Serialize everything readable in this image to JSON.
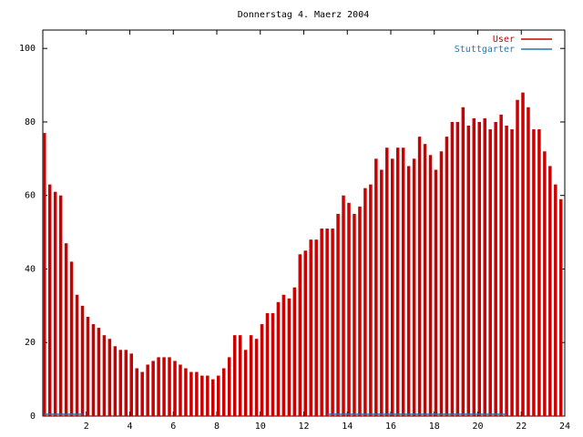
{
  "chart_data": {
    "type": "impulses",
    "title": "Donnerstag 4. Maerz 2004",
    "x": [
      0,
      0.25,
      0.5,
      0.75,
      1,
      1.25,
      1.5,
      1.75,
      2,
      2.25,
      2.5,
      2.75,
      3,
      3.25,
      3.5,
      3.75,
      4,
      4.25,
      4.5,
      4.75,
      5,
      5.25,
      5.5,
      5.75,
      6,
      6.25,
      6.5,
      6.75,
      7,
      7.25,
      7.5,
      7.75,
      8,
      8.25,
      8.5,
      8.75,
      9,
      9.25,
      9.5,
      9.75,
      10,
      10.25,
      10.5,
      10.75,
      11,
      11.25,
      11.5,
      11.75,
      12,
      12.25,
      12.5,
      12.75,
      13,
      13.25,
      13.5,
      13.75,
      14,
      14.25,
      14.5,
      14.75,
      15,
      15.25,
      15.5,
      15.75,
      16,
      16.25,
      16.5,
      16.75,
      17,
      17.25,
      17.5,
      17.75,
      18,
      18.25,
      18.5,
      18.75,
      19,
      19.25,
      19.5,
      19.75,
      20,
      20.25,
      20.5,
      20.75,
      21,
      21.25,
      21.5,
      21.75,
      22,
      22.25,
      22.5,
      22.75,
      23,
      23.25,
      23.5,
      23.75
    ],
    "series": [
      {
        "name": "User",
        "color": "#cc0000",
        "values": [
          77,
          63,
          61,
          60,
          47,
          42,
          33,
          30,
          27,
          25,
          24,
          22,
          21,
          19,
          18,
          18,
          17,
          13,
          12,
          14,
          15,
          16,
          16,
          16,
          15,
          14,
          13,
          12,
          12,
          11,
          11,
          10,
          11,
          13,
          16,
          22,
          22,
          18,
          22,
          21,
          25,
          28,
          28,
          31,
          33,
          32,
          35,
          44,
          45,
          48,
          48,
          51,
          51,
          51,
          55,
          60,
          58,
          55,
          57,
          62,
          63,
          70,
          67,
          73,
          70,
          73,
          73,
          68,
          70,
          76,
          74,
          71,
          67,
          72,
          76,
          80,
          80,
          84,
          79,
          81,
          80,
          81,
          78,
          80,
          82,
          79,
          78,
          86,
          88,
          84,
          78,
          78,
          72,
          68,
          63,
          59
        ]
      },
      {
        "name": "Stuttgarter",
        "color": "#1f77b4",
        "values": [
          0.5,
          0.5,
          0.5,
          0.5,
          0.5,
          0.5,
          0.5,
          0.5,
          null,
          null,
          null,
          null,
          null,
          null,
          null,
          null,
          null,
          null,
          null,
          null,
          null,
          null,
          null,
          null,
          null,
          null,
          null,
          null,
          null,
          null,
          null,
          null,
          null,
          null,
          null,
          null,
          null,
          null,
          null,
          null,
          null,
          null,
          null,
          null,
          null,
          null,
          null,
          null,
          null,
          null,
          null,
          null,
          0.5,
          0.5,
          0.5,
          0.5,
          0.5,
          0.5,
          0.5,
          0.5,
          0.5,
          0.5,
          0.5,
          0.5,
          0.5,
          0.5,
          0.5,
          0.5,
          0.5,
          0.5,
          0.5,
          0.5,
          0.5,
          0.5,
          0.5,
          0.5,
          0.5,
          0.5,
          0.5,
          0.5,
          0.5,
          0.5,
          0.5,
          0.5,
          0.5,
          0.5,
          null,
          null,
          null,
          null,
          null,
          null,
          null,
          null,
          null,
          null
        ]
      }
    ],
    "xlim": [
      0,
      24
    ],
    "xticks": [
      2,
      4,
      6,
      8,
      10,
      12,
      14,
      16,
      18,
      20,
      22,
      24
    ],
    "ylim": [
      0,
      105
    ],
    "yticks": [
      0,
      20,
      40,
      60,
      80,
      100
    ],
    "legend": "upper right"
  }
}
